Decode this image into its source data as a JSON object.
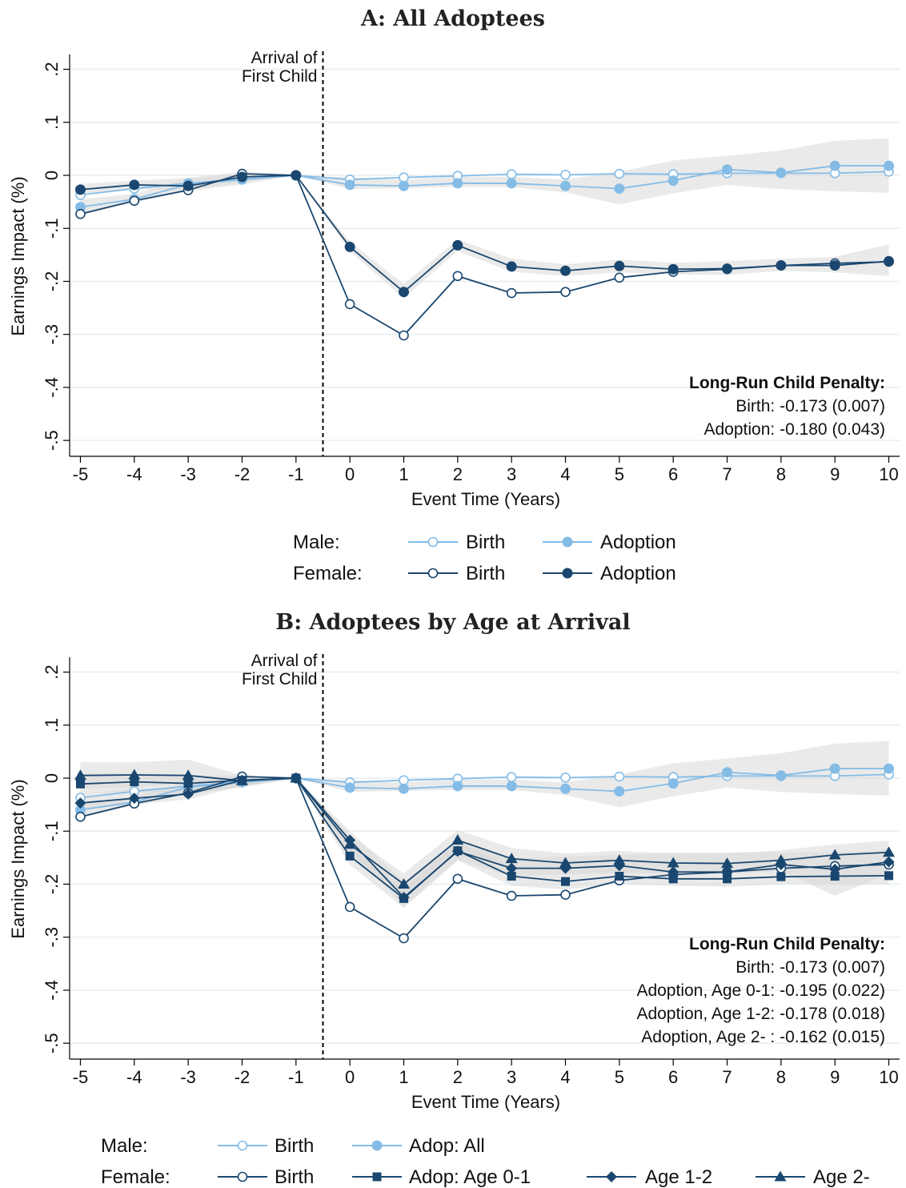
{
  "colors": {
    "light": "#85BCE6",
    "dark": "#1A476F",
    "band": "#D9D9D9",
    "grid": "#E6EEF3"
  },
  "chart_data": [
    {
      "type": "line",
      "title": "A: All Adoptees",
      "xlabel": "Event Time (Years)",
      "ylabel": "Earnings Impact (%)",
      "x": [
        -5,
        -4,
        -3,
        -2,
        -1,
        0,
        1,
        2,
        3,
        4,
        5,
        6,
        7,
        8,
        9,
        10
      ],
      "x_ticks": [
        "-5",
        "-4",
        "-3",
        "-2",
        "-1",
        "0",
        "1",
        "2",
        "3",
        "4",
        "5",
        "6",
        "7",
        "8",
        "9",
        "10"
      ],
      "y_ticks": [
        ".2",
        ".1",
        "0",
        "-.1",
        "-.2",
        "-.3",
        "-.4",
        "-.5"
      ],
      "y_tick_values": [
        0.2,
        0.1,
        0,
        -0.1,
        -0.2,
        -0.3,
        -0.4,
        -0.5
      ],
      "xlim": [
        -5.2,
        10.2
      ],
      "ylim": [
        -0.53,
        0.225
      ],
      "event_line": {
        "x": -0.5,
        "label": [
          "Arrival of",
          "First Child"
        ]
      },
      "series": [
        {
          "legend_group": "Male:",
          "label": "Birth",
          "color": "light",
          "marker": "open-circle",
          "values": [
            -0.037,
            -0.025,
            -0.015,
            -0.007,
            0,
            -0.008,
            -0.004,
            -0.001,
            0.002,
            0.001,
            0.003,
            0.002,
            0.004,
            0.004,
            0.004,
            0.007
          ]
        },
        {
          "legend_group": "Male:",
          "label": "Adoption",
          "color": "light",
          "marker": "filled-circle",
          "band": {
            "lower": [
              -0.075,
              -0.052,
              -0.03,
              -0.017,
              0,
              -0.026,
              -0.024,
              -0.022,
              -0.022,
              -0.032,
              -0.055,
              -0.034,
              -0.018,
              -0.026,
              -0.03,
              -0.033
            ],
            "upper": [
              -0.045,
              -0.035,
              -0.005,
              0.002,
              0,
              -0.004,
              -0.008,
              -0.002,
              -0.003,
              -0.008,
              0.007,
              0.028,
              0.037,
              0.047,
              0.065,
              0.07
            ]
          },
          "values": [
            -0.06,
            -0.045,
            -0.017,
            -0.008,
            0,
            -0.018,
            -0.02,
            -0.015,
            -0.015,
            -0.02,
            -0.025,
            -0.01,
            0.011,
            0.005,
            0.018,
            0.018
          ]
        },
        {
          "legend_group": "Female:",
          "label": "Birth",
          "color": "dark",
          "marker": "open-circle",
          "values": [
            -0.073,
            -0.048,
            -0.028,
            0.003,
            0,
            -0.243,
            -0.302,
            -0.19,
            -0.222,
            -0.22,
            -0.193,
            -0.182,
            -0.177,
            -0.17,
            -0.166,
            -0.163
          ]
        },
        {
          "legend_group": "Female:",
          "label": "Adoption",
          "color": "dark",
          "marker": "filled-circle",
          "band": {
            "lower": [
              -0.038,
              -0.026,
              -0.028,
              -0.013,
              0,
              -0.143,
              -0.232,
              -0.143,
              -0.182,
              -0.19,
              -0.183,
              -0.187,
              -0.188,
              -0.18,
              -0.183,
              -0.19
            ],
            "upper": [
              -0.016,
              -0.01,
              -0.005,
              0.007,
              0,
              -0.125,
              -0.205,
              -0.121,
              -0.157,
              -0.168,
              -0.159,
              -0.165,
              -0.162,
              -0.157,
              -0.154,
              -0.13
            ]
          },
          "values": [
            -0.027,
            -0.018,
            -0.02,
            -0.003,
            0,
            -0.135,
            -0.22,
            -0.132,
            -0.172,
            -0.18,
            -0.171,
            -0.177,
            -0.176,
            -0.17,
            -0.17,
            -0.162
          ]
        }
      ],
      "annotation": {
        "heading": "Long-Run Child Penalty:",
        "lines": [
          "Birth: -0.173 (0.007)",
          "Adoption: -0.180 (0.043)"
        ]
      },
      "legend": {
        "rows": [
          {
            "label": "Male:",
            "items": [
              {
                "text": "Birth",
                "color": "light",
                "marker": "open-circle"
              },
              {
                "text": "Adoption",
                "color": "light",
                "marker": "filled-circle"
              }
            ]
          },
          {
            "label": "Female:",
            "items": [
              {
                "text": "Birth",
                "color": "dark",
                "marker": "open-circle"
              },
              {
                "text": "Adoption",
                "color": "dark",
                "marker": "filled-circle"
              }
            ]
          }
        ]
      }
    },
    {
      "type": "line",
      "title": "B: Adoptees by Age at Arrival",
      "xlabel": "Event Time (Years)",
      "ylabel": "Earnings Impact (%)",
      "x": [
        -5,
        -4,
        -3,
        -2,
        -1,
        0,
        1,
        2,
        3,
        4,
        5,
        6,
        7,
        8,
        9,
        10
      ],
      "x_ticks": [
        "-5",
        "-4",
        "-3",
        "-2",
        "-1",
        "0",
        "1",
        "2",
        "3",
        "4",
        "5",
        "6",
        "7",
        "8",
        "9",
        "10"
      ],
      "y_ticks": [
        ".2",
        ".1",
        "0",
        "-.1",
        "-.2",
        "-.3",
        "-.4",
        "-.5"
      ],
      "y_tick_values": [
        0.2,
        0.1,
        0,
        -0.1,
        -0.2,
        -0.3,
        -0.4,
        -0.5
      ],
      "xlim": [
        -5.2,
        10.2
      ],
      "ylim": [
        -0.53,
        0.225
      ],
      "event_line": {
        "x": -0.5,
        "label": [
          "Arrival of",
          "First Child"
        ]
      },
      "series": [
        {
          "legend_group": "Male:",
          "label": "Birth",
          "color": "light",
          "marker": "open-circle",
          "values": [
            -0.037,
            -0.025,
            -0.015,
            -0.007,
            0,
            -0.008,
            -0.004,
            -0.001,
            0.002,
            0.001,
            0.003,
            0.002,
            0.004,
            0.004,
            0.004,
            0.007
          ]
        },
        {
          "legend_group": "Male:",
          "label": "Adop: All",
          "color": "light",
          "marker": "filled-circle",
          "band": {
            "lower": [
              -0.075,
              -0.052,
              -0.03,
              -0.017,
              0,
              -0.026,
              -0.024,
              -0.022,
              -0.022,
              -0.032,
              -0.055,
              -0.034,
              -0.018,
              -0.026,
              -0.03,
              -0.033
            ],
            "upper": [
              -0.045,
              -0.035,
              -0.005,
              0.002,
              0,
              -0.004,
              -0.008,
              -0.002,
              -0.003,
              -0.008,
              0.007,
              0.028,
              0.037,
              0.047,
              0.065,
              0.07
            ]
          },
          "values": [
            -0.06,
            -0.045,
            -0.017,
            -0.008,
            0,
            -0.018,
            -0.02,
            -0.015,
            -0.015,
            -0.02,
            -0.025,
            -0.01,
            0.011,
            0.005,
            0.018,
            0.018
          ]
        },
        {
          "legend_group": "Female:",
          "label": "Birth",
          "color": "dark",
          "marker": "open-circle",
          "values": [
            -0.073,
            -0.048,
            -0.028,
            0.003,
            0,
            -0.243,
            -0.302,
            -0.19,
            -0.222,
            -0.22,
            -0.193,
            -0.182,
            -0.177,
            -0.17,
            -0.166,
            -0.163
          ]
        },
        {
          "legend_group": "Female:",
          "label": "Adop: Age 0-1",
          "color": "dark",
          "marker": "filled-square",
          "band": {
            "lower": [
              -0.03,
              -0.025,
              -0.03,
              -0.017,
              0,
              -0.163,
              -0.245,
              -0.155,
              -0.203,
              -0.21,
              -0.2,
              -0.203,
              -0.205,
              -0.2,
              -0.2,
              -0.2
            ],
            "upper": [
              0.008,
              0.01,
              0.006,
              0.005,
              0,
              -0.131,
              -0.209,
              -0.121,
              -0.167,
              -0.18,
              -0.17,
              -0.177,
              -0.175,
              -0.17,
              -0.167,
              -0.165
            ]
          },
          "values": [
            -0.011,
            -0.007,
            -0.01,
            -0.004,
            0,
            -0.147,
            -0.227,
            -0.137,
            -0.185,
            -0.195,
            -0.185,
            -0.19,
            -0.19,
            -0.186,
            -0.185,
            -0.184
          ]
        },
        {
          "legend_group": "Female:",
          "label": "Age 1-2",
          "color": "dark",
          "marker": "filled-diamond",
          "band": {
            "lower": [
              -0.06,
              -0.05,
              -0.04,
              -0.015,
              0,
              -0.135,
              -0.242,
              -0.155,
              -0.185,
              -0.182,
              -0.18,
              -0.18,
              -0.178,
              -0.175,
              -0.222,
              -0.18
            ],
            "upper": [
              -0.03,
              -0.02,
              -0.018,
              0.005,
              0,
              -0.1,
              -0.195,
              -0.115,
              -0.15,
              -0.148,
              -0.145,
              -0.14,
              -0.14,
              -0.14,
              -0.14,
              -0.135
            ]
          },
          "values": [
            -0.047,
            -0.038,
            -0.03,
            -0.004,
            0,
            -0.117,
            -0.225,
            -0.138,
            -0.17,
            -0.17,
            -0.165,
            -0.177,
            -0.177,
            -0.163,
            -0.172,
            -0.158
          ]
        },
        {
          "legend_group": "Female:",
          "label": "Age 2-",
          "color": "dark",
          "marker": "filled-triangle",
          "band": {
            "lower": [
              -0.02,
              -0.017,
              -0.01,
              -0.012,
              0,
              -0.145,
              -0.22,
              -0.135,
              -0.17,
              -0.18,
              -0.175,
              -0.178,
              -0.18,
              -0.175,
              -0.165,
              -0.16
            ],
            "upper": [
              0.03,
              0.03,
              0.035,
              0.005,
              0,
              -0.108,
              -0.18,
              -0.098,
              -0.132,
              -0.142,
              -0.137,
              -0.143,
              -0.142,
              -0.136,
              -0.125,
              -0.118
            ]
          },
          "values": [
            0.005,
            0.006,
            0.005,
            -0.005,
            0,
            -0.125,
            -0.2,
            -0.117,
            -0.152,
            -0.16,
            -0.155,
            -0.16,
            -0.161,
            -0.155,
            -0.145,
            -0.14
          ]
        }
      ],
      "annotation": {
        "heading": "Long-Run Child Penalty:",
        "lines": [
          "Birth: -0.173 (0.007)",
          "Adoption, Age 0-1: -0.195 (0.022)",
          "Adoption, Age 1-2: -0.178 (0.018)",
          "Adoption, Age 2-  : -0.162 (0.015)"
        ]
      },
      "legend": {
        "rows": [
          {
            "label": "Male:",
            "items": [
              {
                "text": "Birth",
                "color": "light",
                "marker": "open-circle"
              },
              {
                "text": "Adop: All",
                "color": "light",
                "marker": "filled-circle"
              }
            ]
          },
          {
            "label": "Female:",
            "items": [
              {
                "text": "Birth",
                "color": "dark",
                "marker": "open-circle"
              },
              {
                "text": "Adop: Age 0-1",
                "color": "dark",
                "marker": "filled-square"
              },
              {
                "text": "Age 1-2",
                "color": "dark",
                "marker": "filled-diamond"
              },
              {
                "text": "Age 2-",
                "color": "dark",
                "marker": "filled-triangle"
              }
            ]
          }
        ]
      }
    }
  ]
}
